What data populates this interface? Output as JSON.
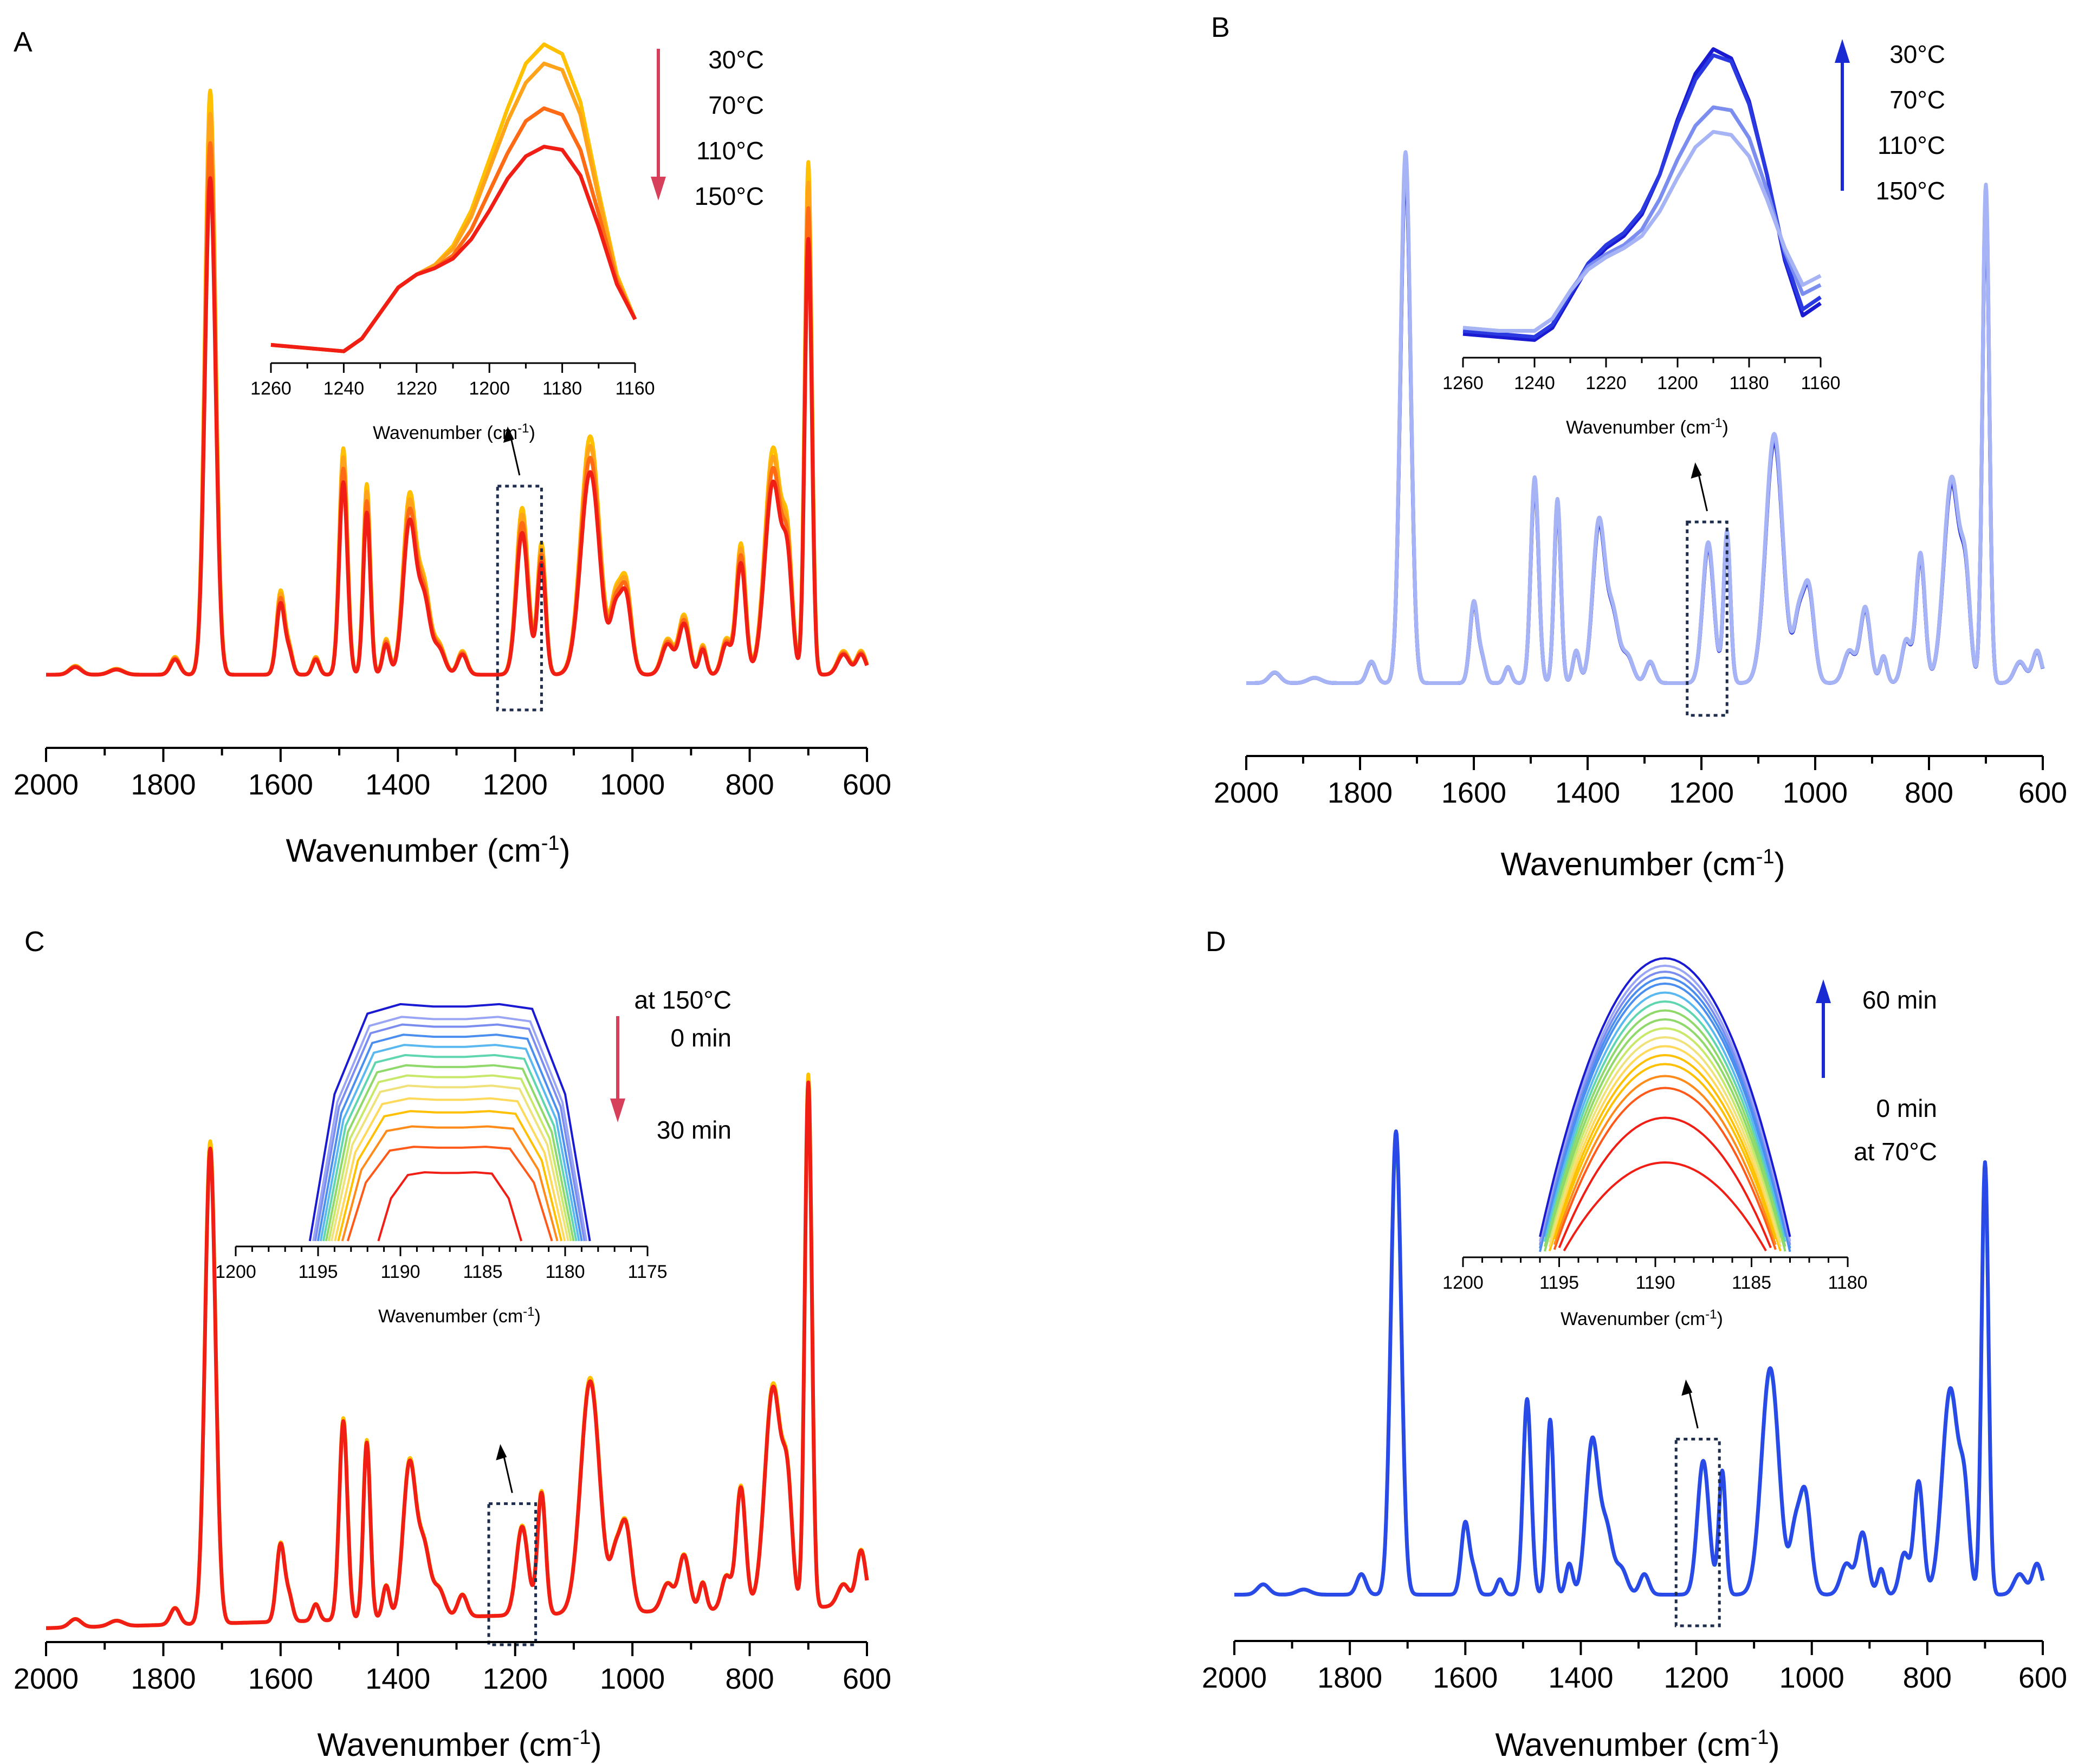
{
  "colors": {
    "heat": [
      "#ffc000",
      "#ffa31a",
      "#ff6a14",
      "#f01e14"
    ],
    "cool": [
      "#1a1ad2",
      "#2a3ae0",
      "#7b8ef0",
      "#a6b3f5"
    ],
    "rainbow": [
      "#f01e14",
      "#ff5a1a",
      "#ff8c1a",
      "#ffc000",
      "#ffd95a",
      "#f0e27a",
      "#c8e86a",
      "#8fd86a",
      "#5fd6b0",
      "#5ab8f0",
      "#4a8ef0",
      "#7b8ef0",
      "#9aa5f5",
      "#1a1ad2"
    ],
    "rect": "#1f2d4d",
    "arrow_red": "#d6405a",
    "arrow_blue": "#1a2ad2"
  },
  "chart_data": [
    {
      "type": "line",
      "panel": "A",
      "xlabel": "Wavenumber (cm-1)",
      "xlim": [
        2000,
        600
      ],
      "x_ticks": [
        2000,
        1800,
        1600,
        1400,
        1200,
        1000,
        800,
        600
      ],
      "x_tick_labels": [
        "2000",
        "1800",
        "1600",
        "1400",
        "1200",
        "1000",
        "800",
        "600"
      ],
      "highlight_box": [
        1230,
        1155
      ],
      "baseline": 0.05,
      "slope": 0.0,
      "peaks": [
        [
          1950,
          0.015,
          10
        ],
        [
          1880,
          0.01,
          12
        ],
        [
          1780,
          0.03,
          8
        ],
        [
          1720,
          0.98,
          9
        ],
        [
          1600,
          0.14,
          7
        ],
        [
          1585,
          0.04,
          6
        ],
        [
          1540,
          0.03,
          6
        ],
        [
          1493,
          0.38,
          7
        ],
        [
          1453,
          0.32,
          6
        ],
        [
          1420,
          0.06,
          6
        ],
        [
          1380,
          0.3,
          11
        ],
        [
          1355,
          0.14,
          10
        ],
        [
          1330,
          0.05,
          10
        ],
        [
          1290,
          0.04,
          8
        ],
        [
          1188,
          0.28,
          10
        ],
        [
          1155,
          0.22,
          7
        ],
        [
          1072,
          0.4,
          16
        ],
        [
          1030,
          0.1,
          8
        ],
        [
          1012,
          0.16,
          10
        ],
        [
          940,
          0.06,
          10
        ],
        [
          912,
          0.1,
          9
        ],
        [
          880,
          0.05,
          6
        ],
        [
          840,
          0.06,
          8
        ],
        [
          815,
          0.22,
          8
        ],
        [
          760,
          0.38,
          14
        ],
        [
          735,
          0.18,
          8
        ],
        [
          700,
          0.86,
          6
        ],
        [
          640,
          0.04,
          10
        ],
        [
          610,
          0.04,
          8
        ]
      ],
      "series": [
        {
          "name": "30°C",
          "peak_scale": 1.0
        },
        {
          "name": "70°C",
          "peak_scale": 0.96
        },
        {
          "name": "110°C",
          "peak_scale": 0.91
        },
        {
          "name": "150°C",
          "peak_scale": 0.85
        }
      ],
      "legend_labels": [
        "30°C",
        "70°C",
        "110°C",
        "150°C"
      ],
      "legend_arrow": "down",
      "inset": {
        "xlabel": "Wavenumber (cm-1)",
        "xlim": [
          1260,
          1160
        ],
        "x_ticks": [
          1260,
          1240,
          1220,
          1200,
          1180,
          1160
        ],
        "x_tick_labels": [
          "1260",
          "1240",
          "1220",
          "1200",
          "1180",
          "1160"
        ],
        "ylim": [
          0.0,
          1.0
        ],
        "x": [
          1260,
          1250,
          1240,
          1235,
          1230,
          1225,
          1220,
          1215,
          1210,
          1205,
          1200,
          1195,
          1190,
          1185,
          1180,
          1175,
          1170,
          1165,
          1160
        ],
        "series": [
          {
            "name": "30°C",
            "y": [
              0.04,
              0.03,
              0.02,
              0.06,
              0.14,
              0.22,
              0.26,
              0.29,
              0.35,
              0.46,
              0.62,
              0.78,
              0.92,
              0.98,
              0.95,
              0.8,
              0.52,
              0.26,
              0.12
            ]
          },
          {
            "name": "70°C",
            "y": [
              0.04,
              0.03,
              0.02,
              0.06,
              0.14,
              0.22,
              0.26,
              0.29,
              0.34,
              0.44,
              0.59,
              0.74,
              0.86,
              0.92,
              0.9,
              0.76,
              0.5,
              0.25,
              0.12
            ]
          },
          {
            "name": "110°C",
            "y": [
              0.04,
              0.03,
              0.02,
              0.06,
              0.14,
              0.22,
              0.26,
              0.28,
              0.32,
              0.4,
              0.52,
              0.64,
              0.74,
              0.78,
              0.76,
              0.65,
              0.45,
              0.24,
              0.12
            ]
          },
          {
            "name": "150°C",
            "y": [
              0.04,
              0.03,
              0.02,
              0.06,
              0.14,
              0.22,
              0.26,
              0.28,
              0.31,
              0.37,
              0.46,
              0.56,
              0.63,
              0.66,
              0.65,
              0.57,
              0.41,
              0.23,
              0.12
            ]
          }
        ]
      }
    },
    {
      "type": "line",
      "panel": "B",
      "xlabel": "Wavenumber (cm-1)",
      "xlim": [
        2000,
        600
      ],
      "x_ticks": [
        2000,
        1800,
        1600,
        1400,
        1200,
        1000,
        800,
        600
      ],
      "x_tick_labels": [
        "2000",
        "1800",
        "1600",
        "1400",
        "1200",
        "1000",
        "800",
        "600"
      ],
      "highlight_box": [
        1225,
        1155
      ],
      "baseline": 0.05,
      "slope": 0.0,
      "peaks": [
        [
          1950,
          0.02,
          10
        ],
        [
          1880,
          0.01,
          12
        ],
        [
          1780,
          0.04,
          8
        ],
        [
          1720,
          0.98,
          9
        ],
        [
          1600,
          0.15,
          7
        ],
        [
          1585,
          0.04,
          6
        ],
        [
          1540,
          0.03,
          6
        ],
        [
          1493,
          0.38,
          7
        ],
        [
          1453,
          0.34,
          6
        ],
        [
          1420,
          0.06,
          6
        ],
        [
          1380,
          0.3,
          11
        ],
        [
          1355,
          0.12,
          10
        ],
        [
          1330,
          0.05,
          10
        ],
        [
          1290,
          0.04,
          8
        ],
        [
          1188,
          0.26,
          10
        ],
        [
          1155,
          0.28,
          6
        ],
        [
          1072,
          0.46,
          15
        ],
        [
          1030,
          0.1,
          8
        ],
        [
          1012,
          0.18,
          10
        ],
        [
          940,
          0.06,
          10
        ],
        [
          912,
          0.14,
          9
        ],
        [
          880,
          0.05,
          6
        ],
        [
          840,
          0.08,
          8
        ],
        [
          815,
          0.24,
          8
        ],
        [
          760,
          0.38,
          14
        ],
        [
          735,
          0.16,
          8
        ],
        [
          700,
          0.92,
          6
        ],
        [
          640,
          0.04,
          10
        ],
        [
          610,
          0.06,
          8
        ]
      ],
      "series": [
        {
          "name": "30°C",
          "peak_scale": 0.98
        },
        {
          "name": "70°C",
          "peak_scale": 0.99
        },
        {
          "name": "110°C",
          "peak_scale": 1.0
        },
        {
          "name": "150°C",
          "peak_scale": 1.01
        }
      ],
      "legend_labels": [
        "30°C",
        "70°C",
        "110°C",
        "150°C"
      ],
      "legend_arrow": "up",
      "inset": {
        "xlabel": "Wavenumber (cm-1)",
        "xlim": [
          1260,
          1160
        ],
        "x_ticks": [
          1260,
          1240,
          1220,
          1200,
          1180,
          1160
        ],
        "x_tick_labels": [
          "1260",
          "1240",
          "1220",
          "1200",
          "1180",
          "1160"
        ],
        "ylim": [
          0.0,
          1.0
        ],
        "x": [
          1260,
          1250,
          1240,
          1235,
          1230,
          1225,
          1220,
          1215,
          1210,
          1205,
          1200,
          1195,
          1190,
          1185,
          1180,
          1175,
          1170,
          1165,
          1160
        ],
        "series": [
          {
            "name": "30°C",
            "y": [
              0.06,
              0.05,
              0.04,
              0.08,
              0.18,
              0.28,
              0.34,
              0.38,
              0.45,
              0.58,
              0.76,
              0.91,
              0.99,
              0.96,
              0.82,
              0.58,
              0.3,
              0.12,
              0.16
            ]
          },
          {
            "name": "70°C",
            "y": [
              0.07,
              0.06,
              0.05,
              0.09,
              0.19,
              0.29,
              0.35,
              0.39,
              0.46,
              0.58,
              0.75,
              0.89,
              0.97,
              0.95,
              0.81,
              0.58,
              0.31,
              0.14,
              0.18
            ]
          },
          {
            "name": "110°C",
            "y": [
              0.08,
              0.07,
              0.07,
              0.11,
              0.2,
              0.28,
              0.32,
              0.35,
              0.4,
              0.5,
              0.63,
              0.74,
              0.8,
              0.79,
              0.7,
              0.53,
              0.33,
              0.19,
              0.22
            ]
          },
          {
            "name": "150°C",
            "y": [
              0.08,
              0.07,
              0.07,
              0.11,
              0.2,
              0.27,
              0.31,
              0.34,
              0.38,
              0.46,
              0.57,
              0.67,
              0.72,
              0.71,
              0.64,
              0.5,
              0.34,
              0.22,
              0.25
            ]
          }
        ]
      }
    },
    {
      "type": "line",
      "panel": "C",
      "xlabel": "Wavenumber (cm-1)",
      "xlim": [
        2000,
        600
      ],
      "x_ticks": [
        2000,
        1800,
        1600,
        1400,
        1200,
        1000,
        800,
        600
      ],
      "x_tick_labels": [
        "2000",
        "1800",
        "1600",
        "1400",
        "1200",
        "1000",
        "800",
        "600"
      ],
      "highlight_box": [
        1245,
        1165
      ],
      "baseline": 0.02,
      "slope": 0.04,
      "peaks": [
        [
          1950,
          0.015,
          10
        ],
        [
          1880,
          0.01,
          12
        ],
        [
          1780,
          0.03,
          8
        ],
        [
          1720,
          0.86,
          9
        ],
        [
          1600,
          0.14,
          7
        ],
        [
          1585,
          0.04,
          6
        ],
        [
          1540,
          0.03,
          6
        ],
        [
          1493,
          0.36,
          7
        ],
        [
          1453,
          0.32,
          6
        ],
        [
          1420,
          0.06,
          6
        ],
        [
          1380,
          0.28,
          11
        ],
        [
          1355,
          0.12,
          10
        ],
        [
          1330,
          0.05,
          10
        ],
        [
          1290,
          0.04,
          8
        ],
        [
          1188,
          0.16,
          10
        ],
        [
          1155,
          0.22,
          7
        ],
        [
          1072,
          0.42,
          16
        ],
        [
          1030,
          0.08,
          8
        ],
        [
          1012,
          0.16,
          10
        ],
        [
          940,
          0.05,
          10
        ],
        [
          912,
          0.1,
          9
        ],
        [
          880,
          0.05,
          6
        ],
        [
          840,
          0.06,
          8
        ],
        [
          815,
          0.22,
          8
        ],
        [
          760,
          0.4,
          14
        ],
        [
          735,
          0.18,
          8
        ],
        [
          700,
          0.95,
          6
        ],
        [
          640,
          0.04,
          10
        ],
        [
          610,
          0.1,
          8
        ]
      ],
      "series": [
        {
          "name": "0 min",
          "peak_scale": 1.0
        },
        {
          "name": "30 min",
          "peak_scale": 0.985
        }
      ],
      "legend_labels": [
        "at 150°C",
        "0 min",
        "30 min"
      ],
      "legend_arrow": "down",
      "inset": {
        "xlabel": "Wavenumber (cm-1)",
        "xlim": [
          1200,
          1175
        ],
        "x_ticks": [
          1200,
          1195,
          1190,
          1185,
          1180,
          1175
        ],
        "x_tick_labels": [
          "1200",
          "1195",
          "1190",
          "1185",
          "1180",
          "1175"
        ],
        "ylim": [
          0.0,
          1.0
        ],
        "x": [
          1195.5,
          1194,
          1192,
          1190,
          1188,
          1186,
          1184,
          1182,
          1180,
          1178.5
        ],
        "levels": [
          0.27,
          0.37,
          0.45,
          0.51,
          0.56,
          0.61,
          0.65,
          0.69,
          0.73,
          0.77,
          0.81,
          0.85,
          0.88,
          0.93
        ],
        "peak_top": 0.93,
        "shape": [
          0.0,
          0.62,
          0.96,
          1.0,
          0.99,
          0.99,
          1.0,
          0.98,
          0.62,
          0.0
        ]
      }
    },
    {
      "type": "line",
      "panel": "D",
      "xlabel": "Wavenumber (cm-1)",
      "xlim": [
        2000,
        600
      ],
      "x_ticks": [
        2000,
        1800,
        1600,
        1400,
        1200,
        1000,
        800,
        600
      ],
      "x_tick_labels": [
        "2000",
        "1800",
        "1600",
        "1400",
        "1200",
        "1000",
        "800",
        "600"
      ],
      "highlight_box": [
        1235,
        1160
      ],
      "baseline": 0.05,
      "slope": 0.0,
      "peaks": [
        [
          1950,
          0.02,
          10
        ],
        [
          1880,
          0.01,
          12
        ],
        [
          1780,
          0.04,
          8
        ],
        [
          1720,
          0.9,
          9
        ],
        [
          1600,
          0.14,
          7
        ],
        [
          1585,
          0.04,
          6
        ],
        [
          1540,
          0.03,
          6
        ],
        [
          1493,
          0.38,
          7
        ],
        [
          1453,
          0.34,
          6
        ],
        [
          1420,
          0.06,
          6
        ],
        [
          1380,
          0.3,
          11
        ],
        [
          1355,
          0.12,
          10
        ],
        [
          1330,
          0.05,
          10
        ],
        [
          1290,
          0.04,
          8
        ],
        [
          1188,
          0.26,
          10
        ],
        [
          1155,
          0.24,
          6
        ],
        [
          1072,
          0.44,
          15
        ],
        [
          1030,
          0.1,
          8
        ],
        [
          1012,
          0.2,
          10
        ],
        [
          940,
          0.06,
          10
        ],
        [
          912,
          0.12,
          9
        ],
        [
          880,
          0.05,
          6
        ],
        [
          840,
          0.08,
          8
        ],
        [
          815,
          0.22,
          8
        ],
        [
          760,
          0.4,
          14
        ],
        [
          735,
          0.16,
          8
        ],
        [
          700,
          0.84,
          6
        ],
        [
          640,
          0.04,
          10
        ],
        [
          610,
          0.06,
          8
        ]
      ],
      "series": [
        {
          "name": "0 min",
          "peak_scale": 0.99
        },
        {
          "name": "60 min",
          "peak_scale": 1.0
        }
      ],
      "legend_labels": [
        "60 min",
        "0 min",
        "at 70°C"
      ],
      "legend_arrow": "up",
      "inset": {
        "xlabel": "Wavenumber (cm-1)",
        "xlim": [
          1200,
          1180
        ],
        "x_ticks": [
          1200,
          1195,
          1190,
          1185,
          1180
        ],
        "x_tick_labels": [
          "1200",
          "1195",
          "1190",
          "1185",
          "1180"
        ],
        "ylim": [
          0.0,
          1.0
        ],
        "x": [
          1196.5,
          1195,
          1194,
          1193,
          1192,
          1191,
          1190,
          1189,
          1188,
          1187,
          1186,
          1185,
          1184,
          1183,
          1181.5
        ],
        "levels": [
          0.3,
          0.45,
          0.55,
          0.59,
          0.63,
          0.66,
          0.69,
          0.72,
          0.75,
          0.78,
          0.81,
          0.84,
          0.87,
          0.9,
          0.92,
          0.94,
          0.96,
          0.985
        ],
        "peak_top": 0.985,
        "center": 1189.5,
        "width": 7.0
      }
    }
  ]
}
